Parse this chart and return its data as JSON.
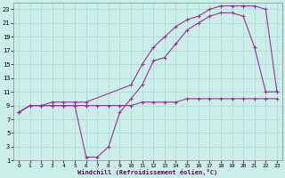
{
  "bg_color": "#cceee8",
  "grid_color": "#aadddd",
  "line_color": "#993399",
  "marker": "+",
  "markersize": 3,
  "linewidth": 0.8,
  "markeredgewidth": 0.8,
  "xlabel": "Windchill (Refroidissement éolien,°C)",
  "xlim": [
    -0.5,
    23.5
  ],
  "ylim": [
    1,
    24
  ],
  "xticks": [
    0,
    1,
    2,
    3,
    4,
    5,
    6,
    7,
    8,
    9,
    10,
    11,
    12,
    13,
    14,
    15,
    16,
    17,
    18,
    19,
    20,
    21,
    22,
    23
  ],
  "yticks": [
    1,
    3,
    5,
    7,
    9,
    11,
    13,
    15,
    17,
    19,
    21,
    23
  ],
  "line1_x": [
    0,
    1,
    2,
    3,
    4,
    5,
    6,
    7,
    8,
    9,
    10,
    11,
    12,
    13,
    14,
    15,
    16,
    17,
    18,
    19,
    20,
    21,
    22,
    23
  ],
  "line1_y": [
    8,
    9,
    9,
    9,
    9,
    9,
    9,
    9,
    9,
    9,
    9,
    9.5,
    9.5,
    9.5,
    9.5,
    10,
    10,
    10,
    10,
    10,
    10,
    10,
    10,
    10
  ],
  "line2_x": [
    0,
    1,
    2,
    3,
    4,
    5,
    6,
    7,
    8,
    9,
    10,
    11,
    12,
    13,
    14,
    15,
    16,
    17,
    18,
    19,
    20,
    21,
    22,
    23
  ],
  "line2_y": [
    8,
    9,
    9,
    9,
    9,
    9,
    1.5,
    1.5,
    3,
    8,
    10,
    12,
    15.5,
    16,
    18,
    20,
    21,
    22,
    22.5,
    22.5,
    22,
    17.5,
    11,
    11
  ],
  "line3_x": [
    0,
    1,
    2,
    3,
    4,
    5,
    6,
    10,
    11,
    12,
    13,
    14,
    15,
    16,
    17,
    18,
    19,
    20,
    21,
    22,
    23
  ],
  "line3_y": [
    8,
    9,
    9,
    9.5,
    9.5,
    9.5,
    9.5,
    12,
    15,
    17.5,
    19,
    20.5,
    21.5,
    22,
    23,
    23.5,
    23.5,
    23.5,
    23.5,
    23,
    11
  ]
}
